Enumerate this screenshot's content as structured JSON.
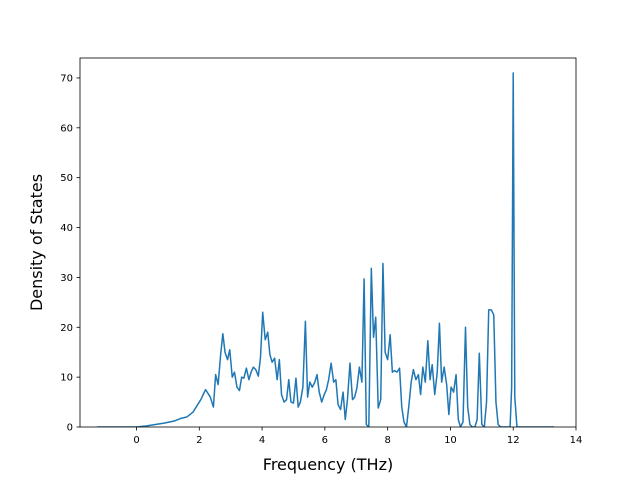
{
  "chart_data": {
    "type": "line",
    "title": "",
    "xlabel": "Frequency (THz)",
    "ylabel": "Density of States",
    "xlim": [
      -1.8,
      14
    ],
    "ylim": [
      0,
      74
    ],
    "xticks": [
      0,
      2,
      4,
      6,
      8,
      10,
      12,
      14
    ],
    "yticks": [
      0,
      10,
      20,
      30,
      40,
      50,
      60,
      70
    ],
    "grid": false,
    "legend": "none",
    "series": [
      {
        "color": "#1f77b4",
        "x": [
          -1.25,
          -0.5,
          0.0,
          0.3,
          0.6,
          0.9,
          1.2,
          1.4,
          1.6,
          1.8,
          1.95,
          2.05,
          2.2,
          2.35,
          2.45,
          2.52,
          2.6,
          2.68,
          2.75,
          2.82,
          2.9,
          2.97,
          3.05,
          3.12,
          3.2,
          3.28,
          3.35,
          3.42,
          3.5,
          3.58,
          3.65,
          3.72,
          3.8,
          3.88,
          3.95,
          4.02,
          4.1,
          4.18,
          4.25,
          4.32,
          4.4,
          4.48,
          4.55,
          4.62,
          4.7,
          4.78,
          4.85,
          4.92,
          5.0,
          5.08,
          5.15,
          5.22,
          5.3,
          5.38,
          5.45,
          5.52,
          5.6,
          5.68,
          5.75,
          5.82,
          5.9,
          5.98,
          6.05,
          6.12,
          6.2,
          6.28,
          6.35,
          6.42,
          6.5,
          6.58,
          6.65,
          6.72,
          6.8,
          6.88,
          6.95,
          7.02,
          7.1,
          7.18,
          7.25,
          7.32,
          7.4,
          7.48,
          7.55,
          7.62,
          7.7,
          7.78,
          7.85,
          7.92,
          8.0,
          8.08,
          8.15,
          8.22,
          8.3,
          8.38,
          8.45,
          8.52,
          8.6,
          8.68,
          8.75,
          8.82,
          8.9,
          8.98,
          9.05,
          9.12,
          9.2,
          9.28,
          9.35,
          9.42,
          9.5,
          9.58,
          9.65,
          9.72,
          9.8,
          9.88,
          9.95,
          10.02,
          10.1,
          10.18,
          10.25,
          10.32,
          10.4,
          10.48,
          10.55,
          10.62,
          10.7,
          10.78,
          10.85,
          10.92,
          11.0,
          11.08,
          11.15,
          11.22,
          11.3,
          11.38,
          11.45,
          11.52,
          11.6,
          11.68,
          11.75,
          11.82,
          11.9,
          11.95,
          12.0,
          12.05,
          12.12,
          12.2,
          12.3,
          12.6,
          13.0,
          13.3
        ],
        "y": [
          0,
          0,
          0,
          0.2,
          0.5,
          0.8,
          1.2,
          1.7,
          2.0,
          3.0,
          4.5,
          5.5,
          7.5,
          6.0,
          4.0,
          10.5,
          8.5,
          14.5,
          18.7,
          15.0,
          13.5,
          15.5,
          10.0,
          11.0,
          8.0,
          7.3,
          10.0,
          9.8,
          11.8,
          9.5,
          11.0,
          12.0,
          11.5,
          10.2,
          14.0,
          23.0,
          17.5,
          19.0,
          14.5,
          13.0,
          13.8,
          9.5,
          13.5,
          6.5,
          5.0,
          5.5,
          9.5,
          5.0,
          4.8,
          9.8,
          4.0,
          5.0,
          8.0,
          21.2,
          6.0,
          9.0,
          8.0,
          9.0,
          10.5,
          7.0,
          5.0,
          6.5,
          7.5,
          9.5,
          12.8,
          9.0,
          9.5,
          4.5,
          3.5,
          7.0,
          1.5,
          5.5,
          12.8,
          5.5,
          6.0,
          7.8,
          12.0,
          9.0,
          29.7,
          0.5,
          0,
          31.8,
          18.0,
          22.0,
          3.8,
          5.5,
          32.8,
          15.0,
          13.5,
          18.5,
          11.0,
          11.3,
          11.0,
          11.8,
          4.0,
          1.0,
          0,
          4.5,
          9.0,
          11.5,
          9.5,
          10.5,
          6.5,
          12.0,
          9.0,
          17.3,
          9.5,
          12.5,
          6.5,
          11.0,
          20.8,
          9.0,
          12.0,
          8.5,
          2.5,
          8.0,
          7.0,
          10.5,
          1.5,
          0,
          1.0,
          20.0,
          4.0,
          0.5,
          0,
          0,
          1.5,
          14.8,
          0.5,
          0,
          5.0,
          23.5,
          23.5,
          22.5,
          5.0,
          0.5,
          0,
          0,
          0,
          0,
          0,
          8.0,
          71.0,
          6.0,
          0,
          0,
          0,
          0,
          0,
          0
        ]
      }
    ]
  }
}
